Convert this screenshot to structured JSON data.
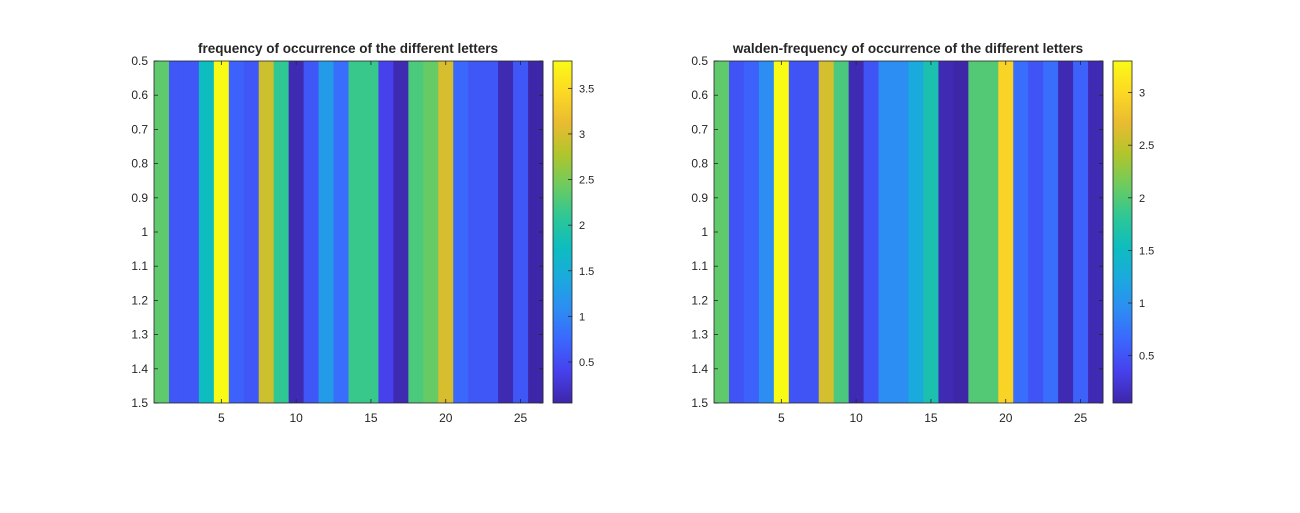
{
  "colormap": [
    "#3e26a8",
    "#4640ec",
    "#3b66fd",
    "#2d8cf3",
    "#1ba9de",
    "#0ebdbf",
    "#2ec795",
    "#6ecb5f",
    "#b1c52b",
    "#e9bb31",
    "#fdd824",
    "#f9fb15"
  ],
  "chart_data": [
    {
      "type": "heatmap",
      "title": "frequency of occurrence of the different letters",
      "xlabel": "",
      "ylabel": "",
      "x_ticks": [
        "5",
        "10",
        "15",
        "20",
        "25"
      ],
      "y_ticks": [
        "0.5",
        "0.6",
        "0.7",
        "0.8",
        "0.9",
        "1",
        "1.1",
        "1.2",
        "1.3",
        "1.4",
        "1.5"
      ],
      "xlim": [
        0.5,
        26.5
      ],
      "ylim": [
        0.5,
        1.5
      ],
      "columns": [
        1,
        2,
        3,
        4,
        5,
        6,
        7,
        8,
        9,
        10,
        11,
        12,
        13,
        14,
        15,
        16,
        17,
        18,
        19,
        20,
        21,
        22,
        23,
        24,
        25,
        26
      ],
      "values": [
        2.35,
        0.6,
        0.6,
        1.75,
        3.8,
        0.7,
        0.6,
        2.95,
        2.1,
        0.1,
        0.6,
        1.25,
        0.8,
        2.15,
        2.15,
        0.4,
        0.1,
        2.25,
        2.4,
        3.0,
        0.75,
        0.6,
        0.6,
        0.1,
        0.6,
        0.05
      ],
      "colorbar": {
        "limits": [
          0.05,
          3.8
        ],
        "ticks": [
          "0.5",
          "1",
          "1.5",
          "2",
          "2.5",
          "3",
          "3.5"
        ]
      },
      "grid": false
    },
    {
      "type": "heatmap",
      "title": "walden-frequency of occurrence of the different letters",
      "xlabel": "",
      "ylabel": "",
      "x_ticks": [
        "5",
        "10",
        "15",
        "20",
        "25"
      ],
      "y_ticks": [
        "0.5",
        "0.6",
        "0.7",
        "0.8",
        "0.9",
        "1",
        "1.1",
        "1.2",
        "1.3",
        "1.4",
        "1.5"
      ],
      "xlim": [
        0.5,
        26.5
      ],
      "ylim": [
        0.5,
        1.5
      ],
      "columns": [
        1,
        2,
        3,
        4,
        5,
        6,
        7,
        8,
        9,
        10,
        11,
        12,
        13,
        14,
        15,
        16,
        17,
        18,
        19,
        20,
        21,
        22,
        23,
        24,
        25,
        26
      ],
      "values": [
        2.05,
        0.5,
        0.6,
        0.95,
        3.3,
        0.5,
        0.5,
        2.6,
        1.95,
        0.1,
        0.5,
        0.95,
        0.95,
        1.25,
        1.65,
        0.1,
        0.05,
        2.0,
        2.0,
        2.95,
        0.7,
        0.5,
        0.7,
        0.1,
        0.6,
        0.1
      ],
      "colorbar": {
        "limits": [
          0.05,
          3.3
        ],
        "ticks": [
          "0.5",
          "1",
          "1.5",
          "2",
          "2.5",
          "3"
        ]
      },
      "grid": false
    }
  ]
}
